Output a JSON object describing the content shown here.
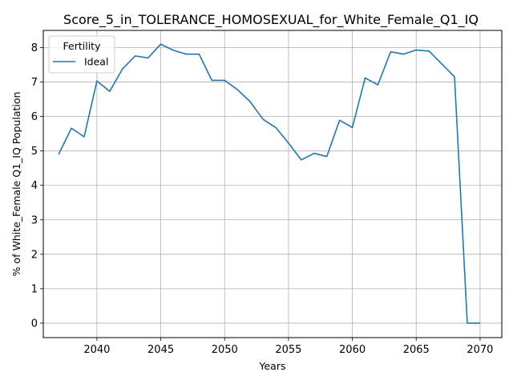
{
  "chart_data": {
    "type": "line",
    "title": "Score_5_in_TOLERANCE_HOMOSEXUAL_for_White_Female_Q1_IQ",
    "xlabel": "Years",
    "ylabel": "% of White_Female Q1_IQ Population",
    "xlim": [
      2035.8,
      2071.7
    ],
    "ylim": [
      -0.42,
      8.5
    ],
    "xticks": [
      2040,
      2045,
      2050,
      2055,
      2060,
      2065,
      2070
    ],
    "yticks": [
      0,
      1,
      2,
      3,
      4,
      5,
      6,
      7,
      8
    ],
    "grid": true,
    "legend": {
      "title": "Fertility",
      "placement": "top-left"
    },
    "series": [
      {
        "name": "Ideal",
        "color": "#1f77b4",
        "x": [
          2037,
          2038,
          2039,
          2040,
          2041,
          2042,
          2043,
          2044,
          2045,
          2046,
          2047,
          2048,
          2049,
          2050,
          2051,
          2052,
          2053,
          2054,
          2055,
          2056,
          2057,
          2058,
          2059,
          2060,
          2061,
          2062,
          2063,
          2064,
          2065,
          2066,
          2067,
          2068,
          2069,
          2070
        ],
        "y": [
          4.9,
          5.66,
          5.41,
          7.03,
          6.73,
          7.38,
          7.76,
          7.7,
          8.1,
          7.92,
          7.81,
          7.81,
          7.05,
          7.05,
          6.78,
          6.43,
          5.92,
          5.68,
          5.23,
          4.74,
          4.93,
          4.84,
          5.89,
          5.68,
          7.12,
          6.92,
          7.88,
          7.81,
          7.93,
          7.9,
          7.53,
          7.15,
          0.0,
          0.0
        ]
      }
    ]
  }
}
